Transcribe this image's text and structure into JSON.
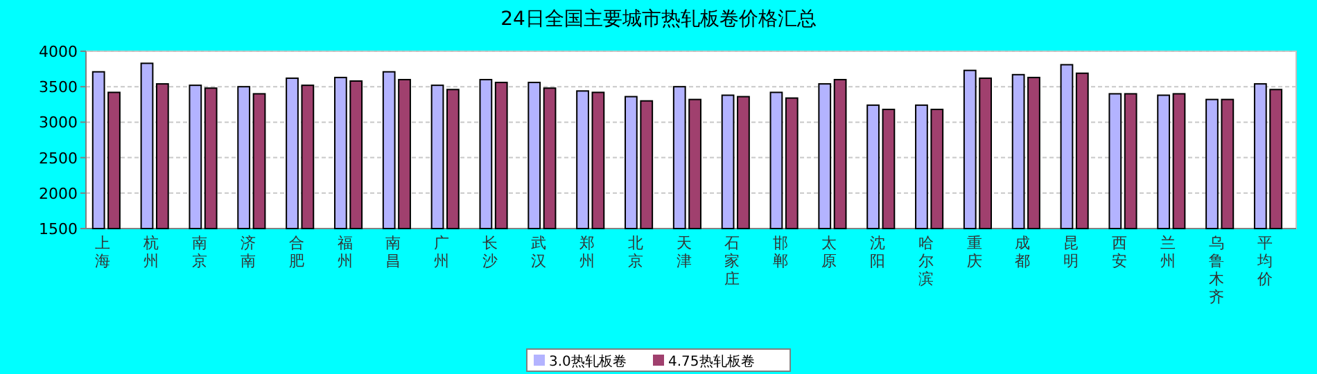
{
  "chart_data": {
    "type": "bar",
    "title": "24日全国主要城市热轧板卷价格汇总",
    "categories": [
      "上海",
      "杭州",
      "南京",
      "济南",
      "合肥",
      "福州",
      "南昌",
      "广州",
      "长沙",
      "武汉",
      "郑州",
      "北京",
      "天津",
      "石家庄",
      "邯郸",
      "太原",
      "沈阳",
      "哈尔滨",
      "重庆",
      "成都",
      "昆明",
      "西安",
      "兰州",
      "乌鲁木齐",
      "平均价"
    ],
    "series": [
      {
        "name": "3.0热轧板卷",
        "color": "#b3b3ff",
        "values": [
          3710,
          3830,
          3520,
          3500,
          3620,
          3630,
          3710,
          3520,
          3600,
          3560,
          3440,
          3360,
          3500,
          3380,
          3420,
          3540,
          3240,
          3240,
          3730,
          3670,
          3810,
          3400,
          3380,
          3320,
          3540
        ]
      },
      {
        "name": "4.75热轧板卷",
        "color": "#a0406e",
        "values": [
          3420,
          3540,
          3480,
          3400,
          3520,
          3580,
          3600,
          3460,
          3560,
          3480,
          3420,
          3300,
          3320,
          3360,
          3340,
          3600,
          3180,
          3180,
          3620,
          3630,
          3690,
          3400,
          3400,
          3320,
          3460
        ]
      }
    ],
    "ylim": [
      1500,
      4000
    ],
    "yticks": [
      1500,
      2000,
      2500,
      3000,
      3500,
      4000
    ],
    "grid": "y",
    "legend": "bottom"
  }
}
